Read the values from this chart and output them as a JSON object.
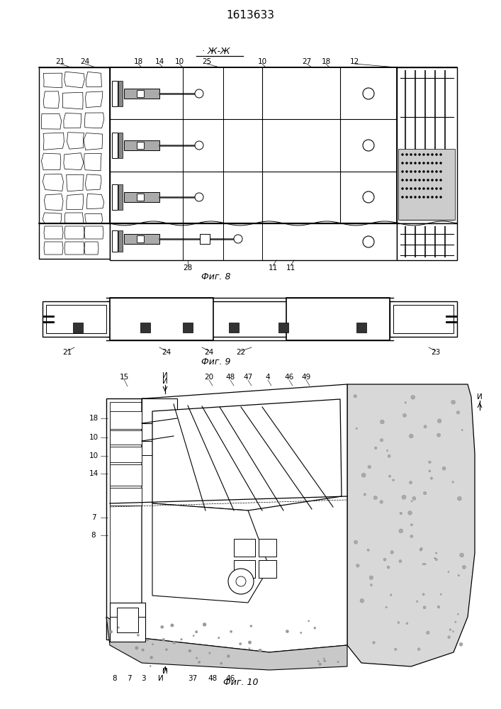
{
  "title": "1613633",
  "fig_label_zh_zh": "· Ж-Ж",
  "fig8_label": "Фиг. 8",
  "fig9_label": "Фиг. 9",
  "fig10_label": "Фиг. 10",
  "background": "#ffffff"
}
